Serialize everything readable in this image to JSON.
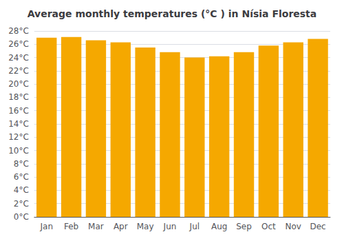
{
  "chart_data": {
    "type": "bar",
    "title": "Average monthly temperatures (°C ) in Nísia Floresta",
    "categories": [
      "Jan",
      "Feb",
      "Mar",
      "Apr",
      "May",
      "Jun",
      "Jul",
      "Aug",
      "Sep",
      "Oct",
      "Nov",
      "Dec"
    ],
    "values": [
      27.0,
      27.1,
      26.6,
      26.3,
      25.5,
      24.8,
      24.0,
      24.2,
      24.8,
      25.8,
      26.3,
      26.8
    ],
    "color": "#F5A800",
    "ylim": [
      0,
      28
    ],
    "yticks": [
      {
        "value": 0,
        "label": "0°C"
      },
      {
        "value": 2,
        "label": "2°C"
      },
      {
        "value": 4,
        "label": "4°C"
      },
      {
        "value": 6,
        "label": "6°C"
      },
      {
        "value": 8,
        "label": "8°C"
      },
      {
        "value": 10,
        "label": "10°C"
      },
      {
        "value": 12,
        "label": "12°C"
      },
      {
        "value": 14,
        "label": "14°C"
      },
      {
        "value": 16,
        "label": "16°C"
      },
      {
        "value": 18,
        "label": "18°C"
      },
      {
        "value": 20,
        "label": "20°C"
      },
      {
        "value": 22,
        "label": "22°C"
      },
      {
        "value": 24,
        "label": "24°C"
      },
      {
        "value": 26,
        "label": "26°C"
      },
      {
        "value": 28,
        "label": "28°C"
      }
    ],
    "grid": true
  }
}
